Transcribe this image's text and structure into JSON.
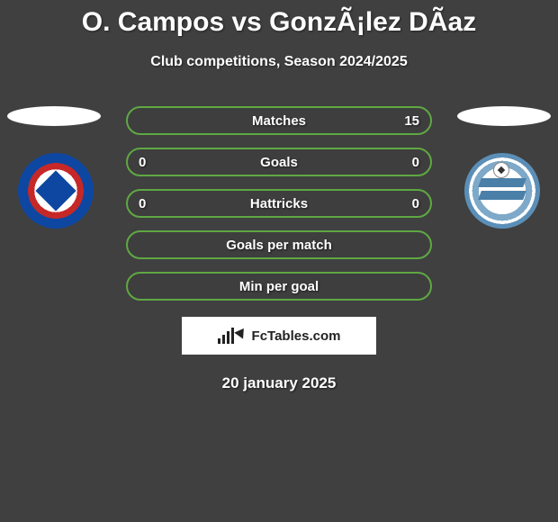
{
  "header": {
    "title": "O. Campos vs GonzÃ¡lez DÃ­az",
    "subtitle": "Club competitions, Season 2024/2025"
  },
  "style": {
    "background_color": "#404040",
    "row_border_color": "#5fa843",
    "text_color": "#ffffff",
    "branding_bg": "#ffffff",
    "branding_text_color": "#222222",
    "title_fontsize": 30,
    "subtitle_fontsize": 16,
    "row_fontsize": 15,
    "date_fontsize": 17
  },
  "player_left": {
    "crest_colors": {
      "outer": "#0d47a1",
      "ring": "#c62828",
      "inner": "#ffffff"
    }
  },
  "player_right": {
    "crest_colors": {
      "outer": "#5b8fb8",
      "mid": "#7ea9c9",
      "inner": "#ffffff",
      "stripe": "#4a7fa8"
    }
  },
  "stats": {
    "rows": [
      {
        "label": "Matches",
        "left": "",
        "right": "15"
      },
      {
        "label": "Goals",
        "left": "0",
        "right": "0"
      },
      {
        "label": "Hattricks",
        "left": "0",
        "right": "0"
      },
      {
        "label": "Goals per match",
        "left": "",
        "right": ""
      },
      {
        "label": "Min per goal",
        "left": "",
        "right": ""
      }
    ]
  },
  "branding": {
    "text": "FcTables.com"
  },
  "footer": {
    "date": "20 january 2025"
  }
}
